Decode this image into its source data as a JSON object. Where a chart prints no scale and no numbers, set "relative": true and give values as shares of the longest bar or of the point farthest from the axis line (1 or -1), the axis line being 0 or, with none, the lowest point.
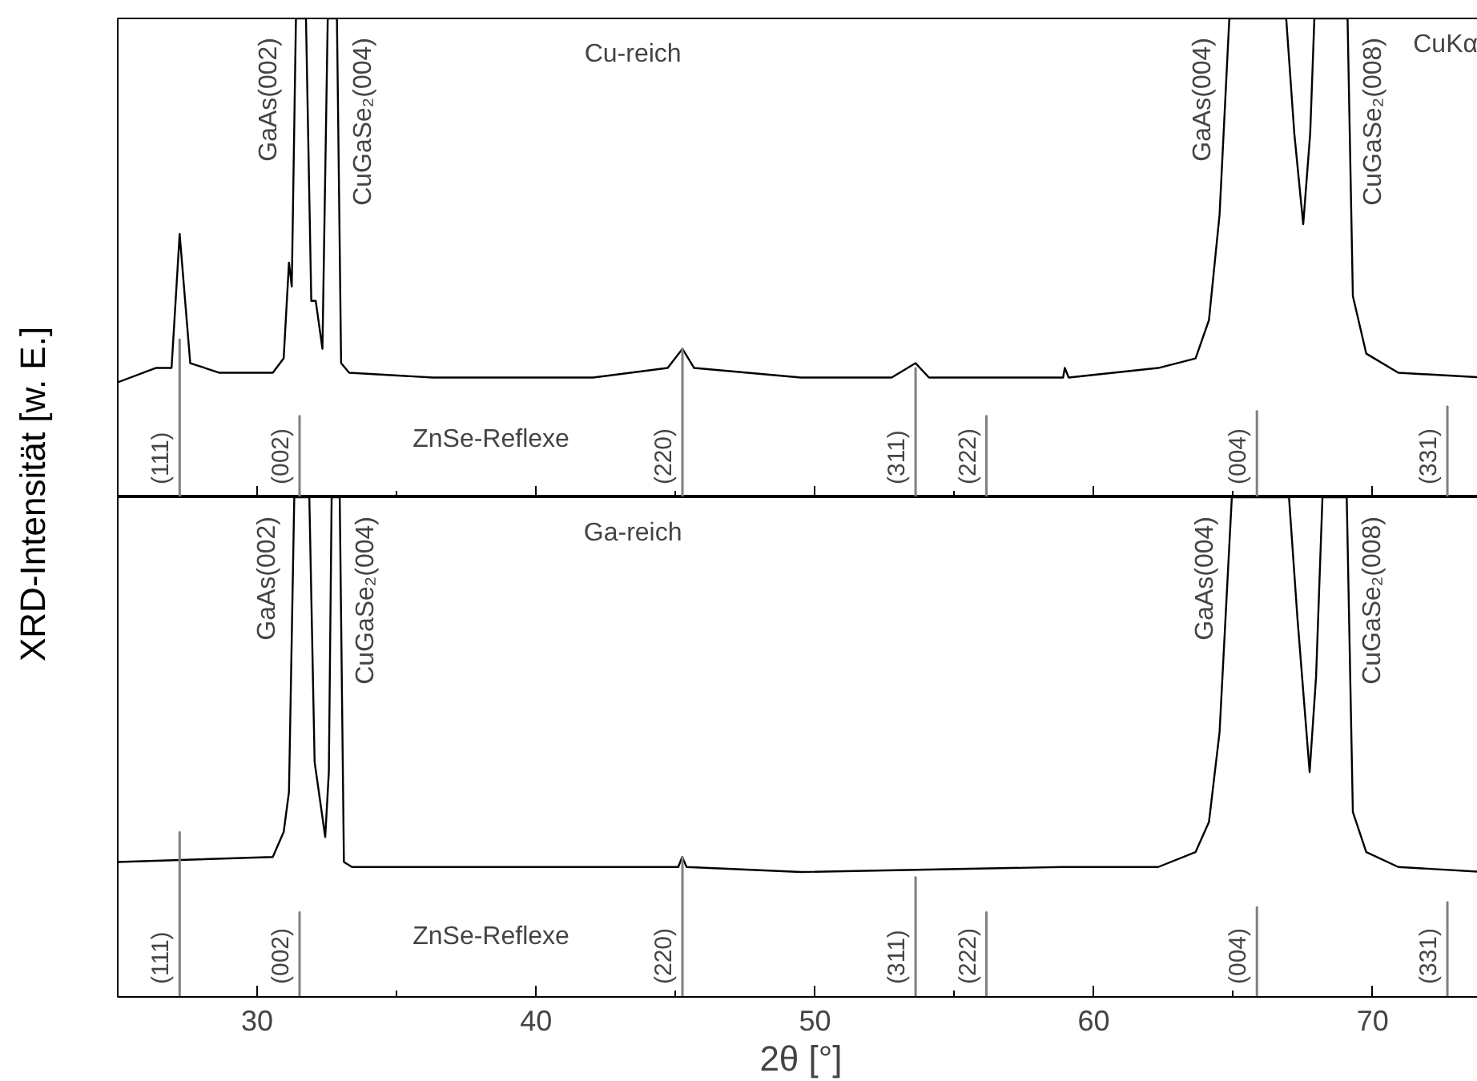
{
  "chart_data": [
    {
      "type": "line",
      "title": "Cu-reich",
      "ylabel": "XRD-Intensität [w. E.]",
      "relative": true,
      "xlim": [
        25,
        74
      ],
      "xticks": [
        30,
        {
          "value": 35,
          "label": null
        },
        40,
        {
          "value": 45,
          "label": null
        },
        50,
        {
          "value": 55,
          "label": null
        },
        60,
        {
          "value": 65,
          "label": null
        },
        70
      ],
      "tick_labels": false,
      "series": [
        {
          "color": "#000000",
          "x": [
            25.0,
            26.36,
            26.93,
            27.22,
            27.6,
            28.65,
            30.56,
            30.95,
            31.14,
            31.24,
            31.39,
            31.75,
            31.94,
            32.1,
            32.34,
            32.53,
            32.86,
            33.01,
            33.3,
            36.3,
            42.04,
            44.72,
            45.25,
            45.67,
            49.5,
            52.75,
            53.61,
            54.09,
            58.9,
            58.96,
            59.1,
            62.31,
            63.65,
            64.13,
            64.51,
            64.86,
            66.9,
            67.19,
            67.51,
            67.76,
            67.91,
            69.1,
            69.29,
            69.77,
            70.92,
            74.0
          ],
          "values": [
            0.24,
            0.27,
            0.27,
            0.55,
            0.28,
            0.26,
            0.26,
            0.29,
            0.49,
            0.44,
            1.0,
            1.0,
            0.41,
            0.41,
            0.31,
            1.0,
            1.0,
            0.28,
            0.26,
            0.25,
            0.25,
            0.27,
            0.31,
            0.27,
            0.25,
            0.25,
            0.28,
            0.25,
            0.25,
            0.27,
            0.25,
            0.27,
            0.29,
            0.37,
            0.59,
            1.0,
            1.0,
            0.76,
            0.57,
            0.76,
            1.0,
            1.0,
            0.42,
            0.3,
            0.26,
            0.25
          ]
        },
        {
          "type": "bar",
          "name": "ZnSe-Reflexe",
          "color": "#808080",
          "x": [
            27.22,
            31.52,
            45.25,
            53.61,
            56.15,
            65.85,
            72.68
          ],
          "values": [
            0.33,
            0.17,
            0.31,
            0.27,
            0.17,
            0.18,
            0.19
          ]
        }
      ],
      "annotations": [
        {
          "text": "GaAs(002)",
          "x": 31.39,
          "y": 1.0
        },
        {
          "text": "CuGaSe₂(004)",
          "x": 32.86,
          "y": 1.0
        },
        {
          "text": "GaAs(004)",
          "x": 64.86,
          "y": 1.0
        },
        {
          "text": "CuGaSe₂(008)",
          "x": 69.1,
          "y": 1.0
        },
        {
          "text": "(111)",
          "x": 27.22,
          "y": 0
        },
        {
          "text": "(002)",
          "x": 31.52,
          "y": 0
        },
        {
          "text": "(220)",
          "x": 45.25,
          "y": 0
        },
        {
          "text": "(311)",
          "x": 53.61,
          "y": 0
        },
        {
          "text": "(222)",
          "x": 56.15,
          "y": 0
        },
        {
          "text": "(004)",
          "x": 65.85,
          "y": 0
        },
        {
          "text": "(331)",
          "x": 72.68,
          "y": 0
        },
        "CuKα"
      ]
    },
    {
      "type": "line",
      "title": "Ga-reich",
      "xlabel": "2θ [°]",
      "relative": true,
      "xlim": [
        25,
        74
      ],
      "xticks": [
        30,
        {
          "value": 35,
          "label": null
        },
        40,
        {
          "value": 45,
          "label": null
        },
        50,
        {
          "value": 55,
          "label": null
        },
        60,
        {
          "value": 65,
          "label": null
        },
        70
      ],
      "tick_labels": "x",
      "series": [
        {
          "color": "#000000",
          "x": [
            25.0,
            30.56,
            30.95,
            31.14,
            31.33,
            31.87,
            32.06,
            32.44,
            32.57,
            32.67,
            32.96,
            33.11,
            33.4,
            45.1,
            45.24,
            45.4,
            49.5,
            58.87,
            62.31,
            63.65,
            64.13,
            64.51,
            64.95,
            67.0,
            67.3,
            67.74,
            67.97,
            68.2,
            69.07,
            69.29,
            69.77,
            70.92,
            74.0
          ],
          "values": [
            0.27,
            0.28,
            0.33,
            0.41,
            1.0,
            1.0,
            0.47,
            0.32,
            0.45,
            1.0,
            1.0,
            0.27,
            0.26,
            0.26,
            0.28,
            0.26,
            0.25,
            0.26,
            0.26,
            0.29,
            0.35,
            0.53,
            1.0,
            1.0,
            0.76,
            0.45,
            0.64,
            1.0,
            1.0,
            0.37,
            0.29,
            0.26,
            0.25
          ]
        },
        {
          "type": "bar",
          "name": "ZnSe-Reflexe",
          "color": "#808080",
          "x": [
            27.22,
            31.52,
            45.25,
            53.61,
            56.15,
            65.85,
            72.68
          ],
          "values": [
            0.33,
            0.17,
            0.28,
            0.24,
            0.17,
            0.18,
            0.19
          ]
        }
      ],
      "annotations": [
        {
          "text": "GaAs(002)",
          "x": 31.33,
          "y": 1.0
        },
        {
          "text": "CuGaSe₂(004)",
          "x": 32.96,
          "y": 1.0
        },
        {
          "text": "GaAs(004)",
          "x": 64.95,
          "y": 1.0
        },
        {
          "text": "CuGaSe₂(008)",
          "x": 69.07,
          "y": 1.0
        },
        {
          "text": "(111)",
          "x": 27.22,
          "y": 0
        },
        {
          "text": "(002)",
          "x": 31.52,
          "y": 0
        },
        {
          "text": "(220)",
          "x": 45.25,
          "y": 0
        },
        {
          "text": "(311)",
          "x": 53.61,
          "y": 0
        },
        {
          "text": "(222)",
          "x": 56.15,
          "y": 0
        },
        {
          "text": "(004)",
          "x": 65.85,
          "y": 0
        },
        {
          "text": "(331)",
          "x": 72.68,
          "y": 0
        }
      ]
    }
  ]
}
